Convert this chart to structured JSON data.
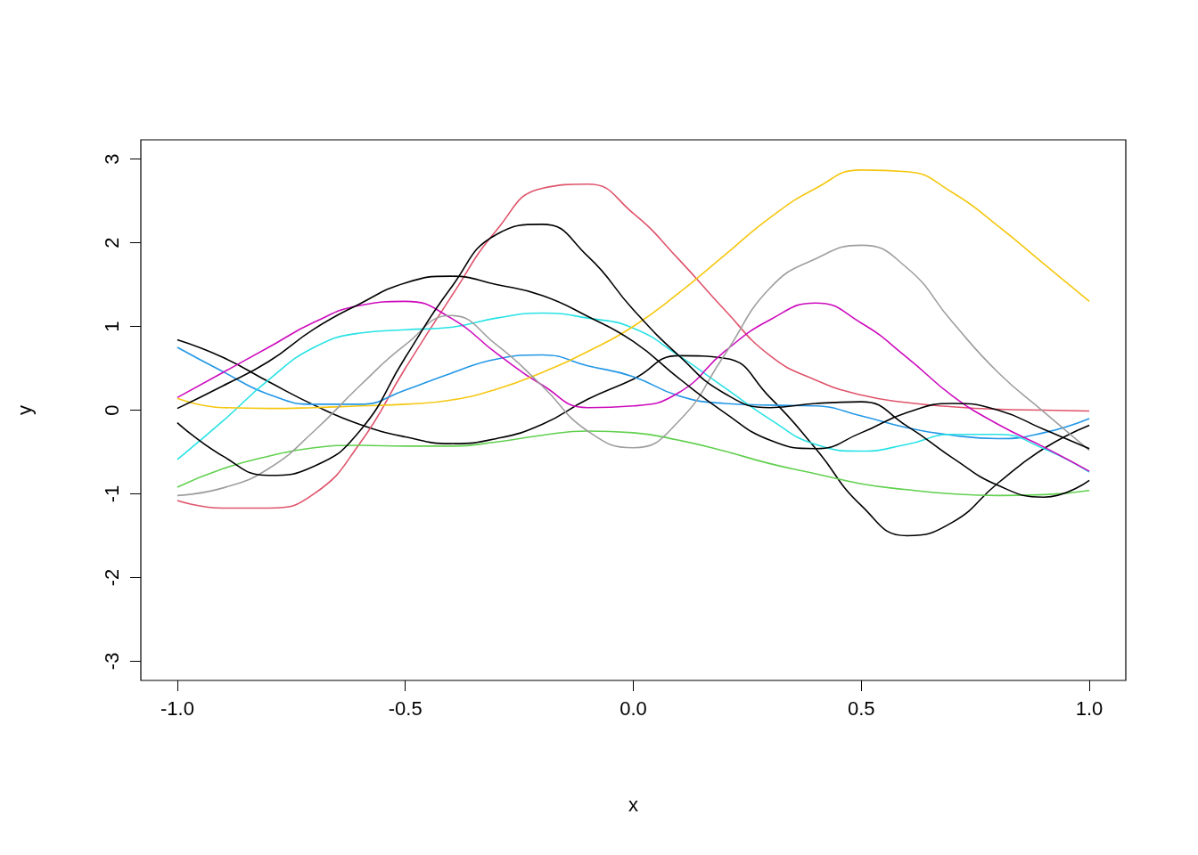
{
  "chart_data": {
    "type": "line",
    "xlabel": "x",
    "ylabel": "y",
    "x": [
      -1,
      -0.9,
      -0.8,
      -0.7,
      -0.6,
      -0.5,
      -0.4,
      -0.3,
      -0.2,
      -0.1,
      0,
      0.1,
      0.2,
      0.3,
      0.4,
      0.5,
      0.6,
      0.7,
      0.8,
      0.9,
      1
    ],
    "series": [
      {
        "color": "#000000",
        "values": [
          0.84,
          0.63,
          0.34,
          0.06,
          -0.17,
          -0.32,
          -0.4,
          -0.34,
          -0.17,
          0.13,
          0.37,
          0.65,
          0.62,
          0.15,
          -0.46,
          -1.14,
          -1.5,
          -1.34,
          -0.87,
          -0.46,
          -0.18
        ]
      },
      {
        "color": "#df536b",
        "values": [
          -1.08,
          -1.17,
          -1.17,
          -1.0,
          -0.4,
          0.5,
          1.35,
          2.15,
          2.65,
          2.7,
          2.35,
          1.8,
          1.2,
          0.65,
          0.36,
          0.18,
          0.09,
          0.04,
          0.01,
          0,
          -0.01
        ]
      },
      {
        "color": "#61d04f",
        "values": [
          -0.92,
          -0.7,
          -0.55,
          -0.45,
          -0.42,
          -0.43,
          -0.43,
          -0.38,
          -0.3,
          -0.25,
          -0.27,
          -0.36,
          -0.49,
          -0.64,
          -0.76,
          -0.88,
          -0.95,
          -1.0,
          -1.02,
          -1.01,
          -0.96
        ]
      },
      {
        "color": "#2297e6",
        "values": [
          0.75,
          0.46,
          0.19,
          0.07,
          0.07,
          0.24,
          0.44,
          0.61,
          0.66,
          0.53,
          0.4,
          0.17,
          0.08,
          0.06,
          0.05,
          -0.07,
          -0.21,
          -0.3,
          -0.34,
          -0.27,
          -0.1
        ]
      },
      {
        "color": "#28e2e5",
        "values": [
          -0.59,
          -0.13,
          0.36,
          0.75,
          0.92,
          0.96,
          0.99,
          1.1,
          1.16,
          1.1,
          0.98,
          0.65,
          0.27,
          -0.11,
          -0.41,
          -0.49,
          -0.41,
          -0.29,
          -0.29,
          -0.46,
          -0.74
        ]
      },
      {
        "color": "#cd0bbc",
        "values": [
          0.15,
          0.45,
          0.75,
          1.05,
          1.25,
          1.3,
          1.1,
          0.68,
          0.3,
          0.03,
          0.05,
          0.21,
          0.7,
          1.08,
          1.28,
          1.04,
          0.63,
          0.17,
          -0.17,
          -0.44,
          -0.73
        ]
      },
      {
        "color": "#f5c710",
        "values": [
          0.14,
          0.03,
          0.02,
          0.03,
          0.05,
          0.07,
          0.12,
          0.25,
          0.45,
          0.7,
          1.0,
          1.4,
          1.85,
          2.3,
          2.65,
          2.87,
          2.85,
          2.6,
          2.2,
          1.75,
          1.3
        ]
      },
      {
        "color": "#9e9e9e",
        "values": [
          -1.02,
          -0.93,
          -0.7,
          -0.25,
          0.29,
          0.78,
          1.13,
          0.78,
          0.29,
          -0.25,
          -0.45,
          -0.13,
          0.66,
          1.46,
          1.81,
          1.97,
          1.7,
          1.05,
          0.45,
          -0.02,
          -0.48
        ]
      },
      {
        "color": "#000000",
        "values": [
          -0.15,
          -0.55,
          -0.78,
          -0.67,
          -0.25,
          0.63,
          1.46,
          2.1,
          2.22,
          1.84,
          1.2,
          0.65,
          0.2,
          0.03,
          0.08,
          0.1,
          -0.19,
          -0.57,
          -0.9,
          -1.04,
          -0.84
        ]
      },
      {
        "color": "#000000",
        "values": [
          0.02,
          0.29,
          0.58,
          0.97,
          1.27,
          1.52,
          1.6,
          1.5,
          1.37,
          1.12,
          0.82,
          0.38,
          -0.03,
          -0.36,
          -0.46,
          -0.27,
          -0.03,
          0.08,
          0,
          -0.23,
          -0.46
        ]
      }
    ],
    "xlim": [
      -1.08,
      1.08
    ],
    "ylim": [
      -3.23,
      3.23
    ],
    "xticks": [
      {
        "value": -1,
        "label": "-1.0"
      },
      {
        "value": -0.5,
        "label": "-0.5"
      },
      {
        "value": 0,
        "label": "0.0"
      },
      {
        "value": 0.5,
        "label": "0.5"
      },
      {
        "value": 1,
        "label": "1.0"
      }
    ],
    "yticks": [
      -3,
      -2,
      -1,
      0,
      1,
      2,
      3
    ]
  }
}
